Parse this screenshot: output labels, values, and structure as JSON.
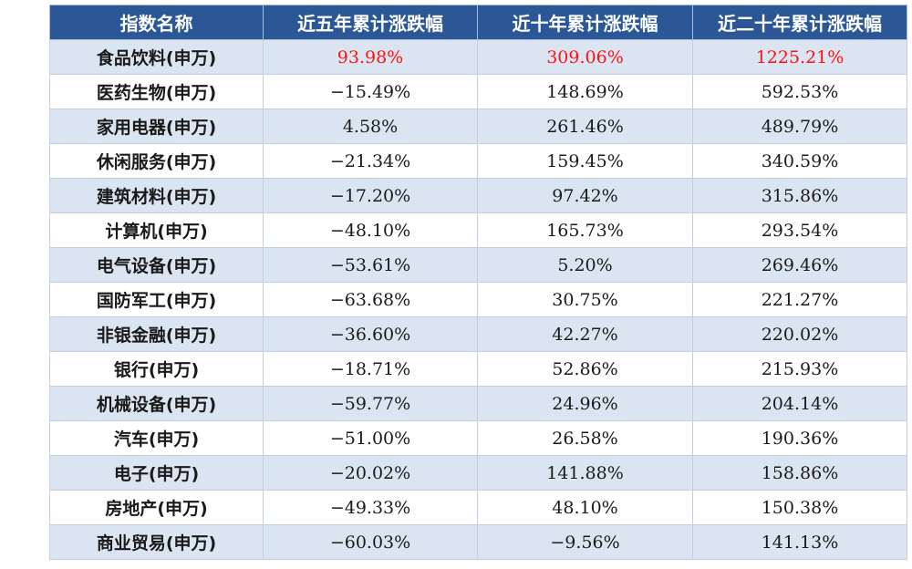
{
  "table": {
    "headers": [
      "指数名称",
      "近五年累计涨跌幅",
      "近十年累计涨跌幅",
      "近二十年累计涨跌幅"
    ],
    "highlight_color": "#ff1111",
    "header_color": "#2b5797",
    "alt_row_color": "#dbe5f2",
    "rows": [
      {
        "name": "食品饮料(申万)",
        "y5": "93.98%",
        "y10": "309.06%",
        "y20": "1225.21%"
      },
      {
        "name": "医药生物(申万)",
        "y5": "−15.49%",
        "y10": "148.69%",
        "y20": "592.53%"
      },
      {
        "name": "家用电器(申万)",
        "y5": "4.58%",
        "y10": "261.46%",
        "y20": "489.79%"
      },
      {
        "name": "休闲服务(申万)",
        "y5": "−21.34%",
        "y10": "159.45%",
        "y20": "340.59%"
      },
      {
        "name": "建筑材料(申万)",
        "y5": "−17.20%",
        "y10": "97.42%",
        "y20": "315.86%"
      },
      {
        "name": "计算机(申万)",
        "y5": "−48.10%",
        "y10": "165.73%",
        "y20": "293.54%"
      },
      {
        "name": "电气设备(申万)",
        "y5": "−53.61%",
        "y10": "5.20%",
        "y20": "269.46%"
      },
      {
        "name": "国防军工(申万)",
        "y5": "−63.68%",
        "y10": "30.75%",
        "y20": "221.27%"
      },
      {
        "name": "非银金融(申万)",
        "y5": "−36.60%",
        "y10": "42.27%",
        "y20": "220.02%"
      },
      {
        "name": "银行(申万)",
        "y5": "−18.71%",
        "y10": "52.86%",
        "y20": "215.93%"
      },
      {
        "name": "机械设备(申万)",
        "y5": "−59.77%",
        "y10": "24.96%",
        "y20": "204.14%"
      },
      {
        "name": "汽车(申万)",
        "y5": "−51.00%",
        "y10": "26.58%",
        "y20": "190.36%"
      },
      {
        "name": "电子(申万)",
        "y5": "−20.02%",
        "y10": "141.88%",
        "y20": "158.86%"
      },
      {
        "name": "房地产(申万)",
        "y5": "−49.33%",
        "y10": "48.10%",
        "y20": "150.38%"
      },
      {
        "name": "商业贸易(申万)",
        "y5": "−60.03%",
        "y10": "−9.56%",
        "y20": "141.13%"
      }
    ]
  }
}
